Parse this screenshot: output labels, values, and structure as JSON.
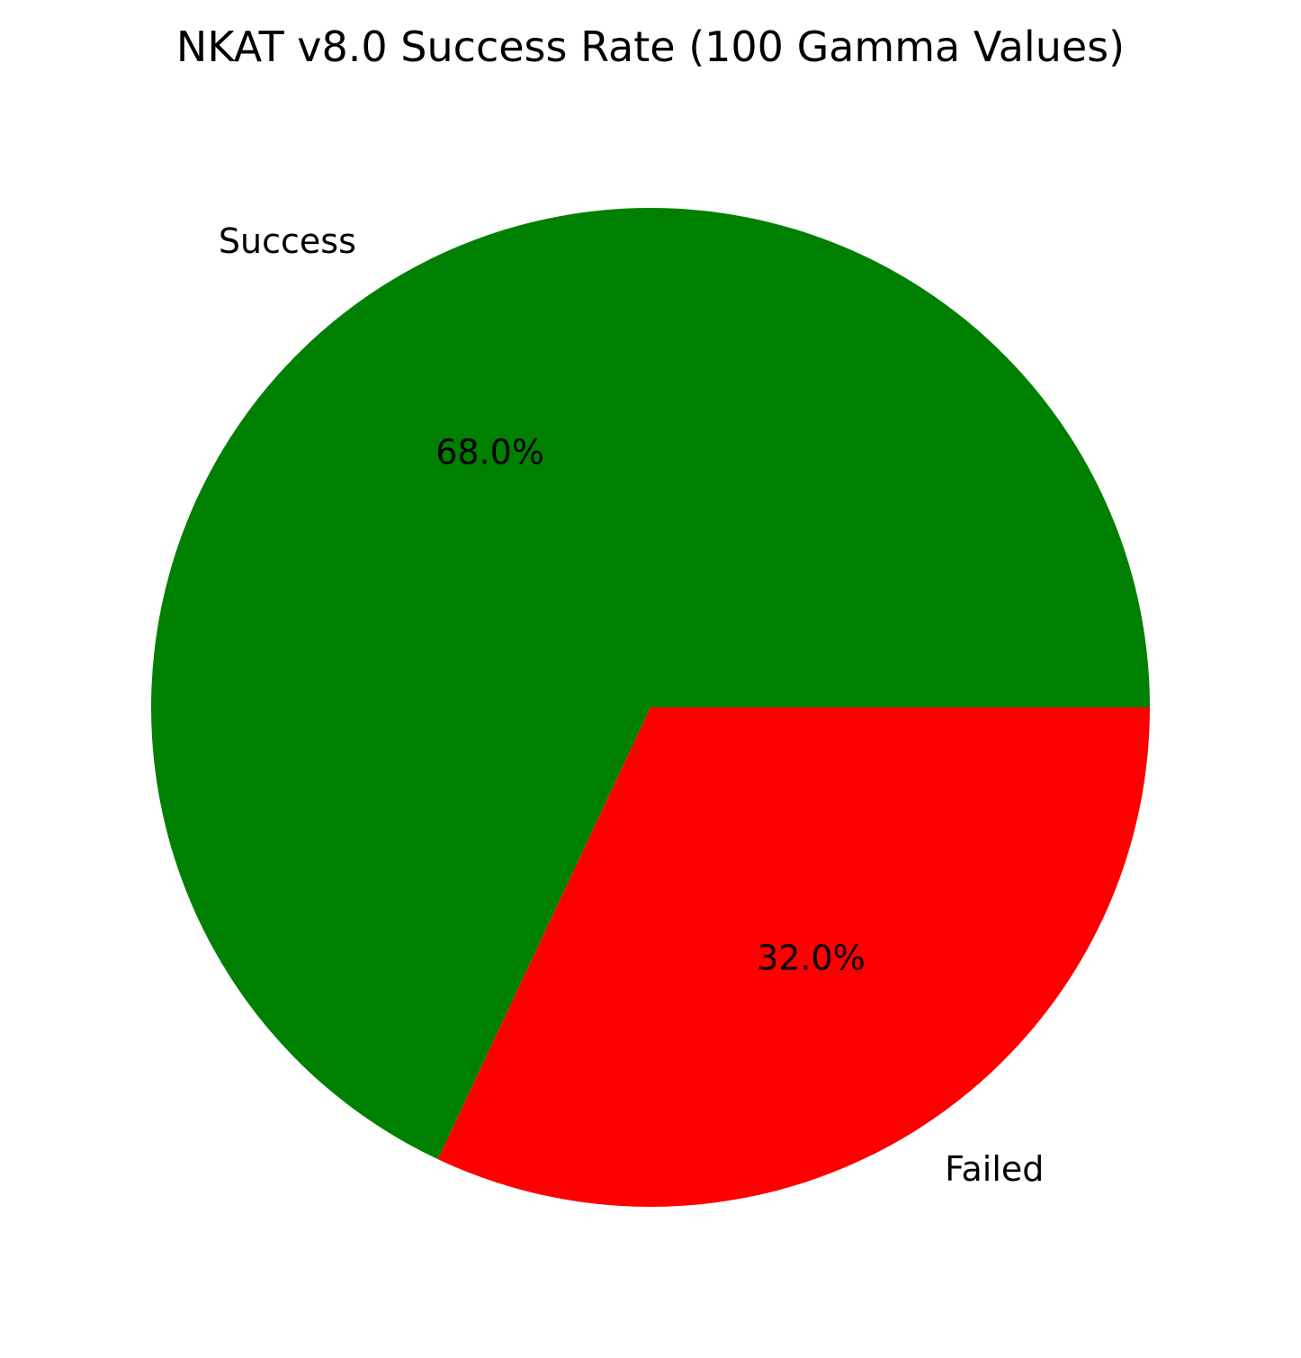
{
  "chart_data": {
    "type": "pie",
    "title": "NKAT v8.0 Success Rate (100 Gamma Values)",
    "start_angle_deg": 0,
    "direction": "counterclockwise",
    "slices": [
      {
        "label": "Success",
        "value": 68,
        "percent_label": "68.0%",
        "color": "#008000"
      },
      {
        "label": "Failed",
        "value": 32,
        "percent_label": "32.0%",
        "color": "#ff0000"
      }
    ]
  }
}
